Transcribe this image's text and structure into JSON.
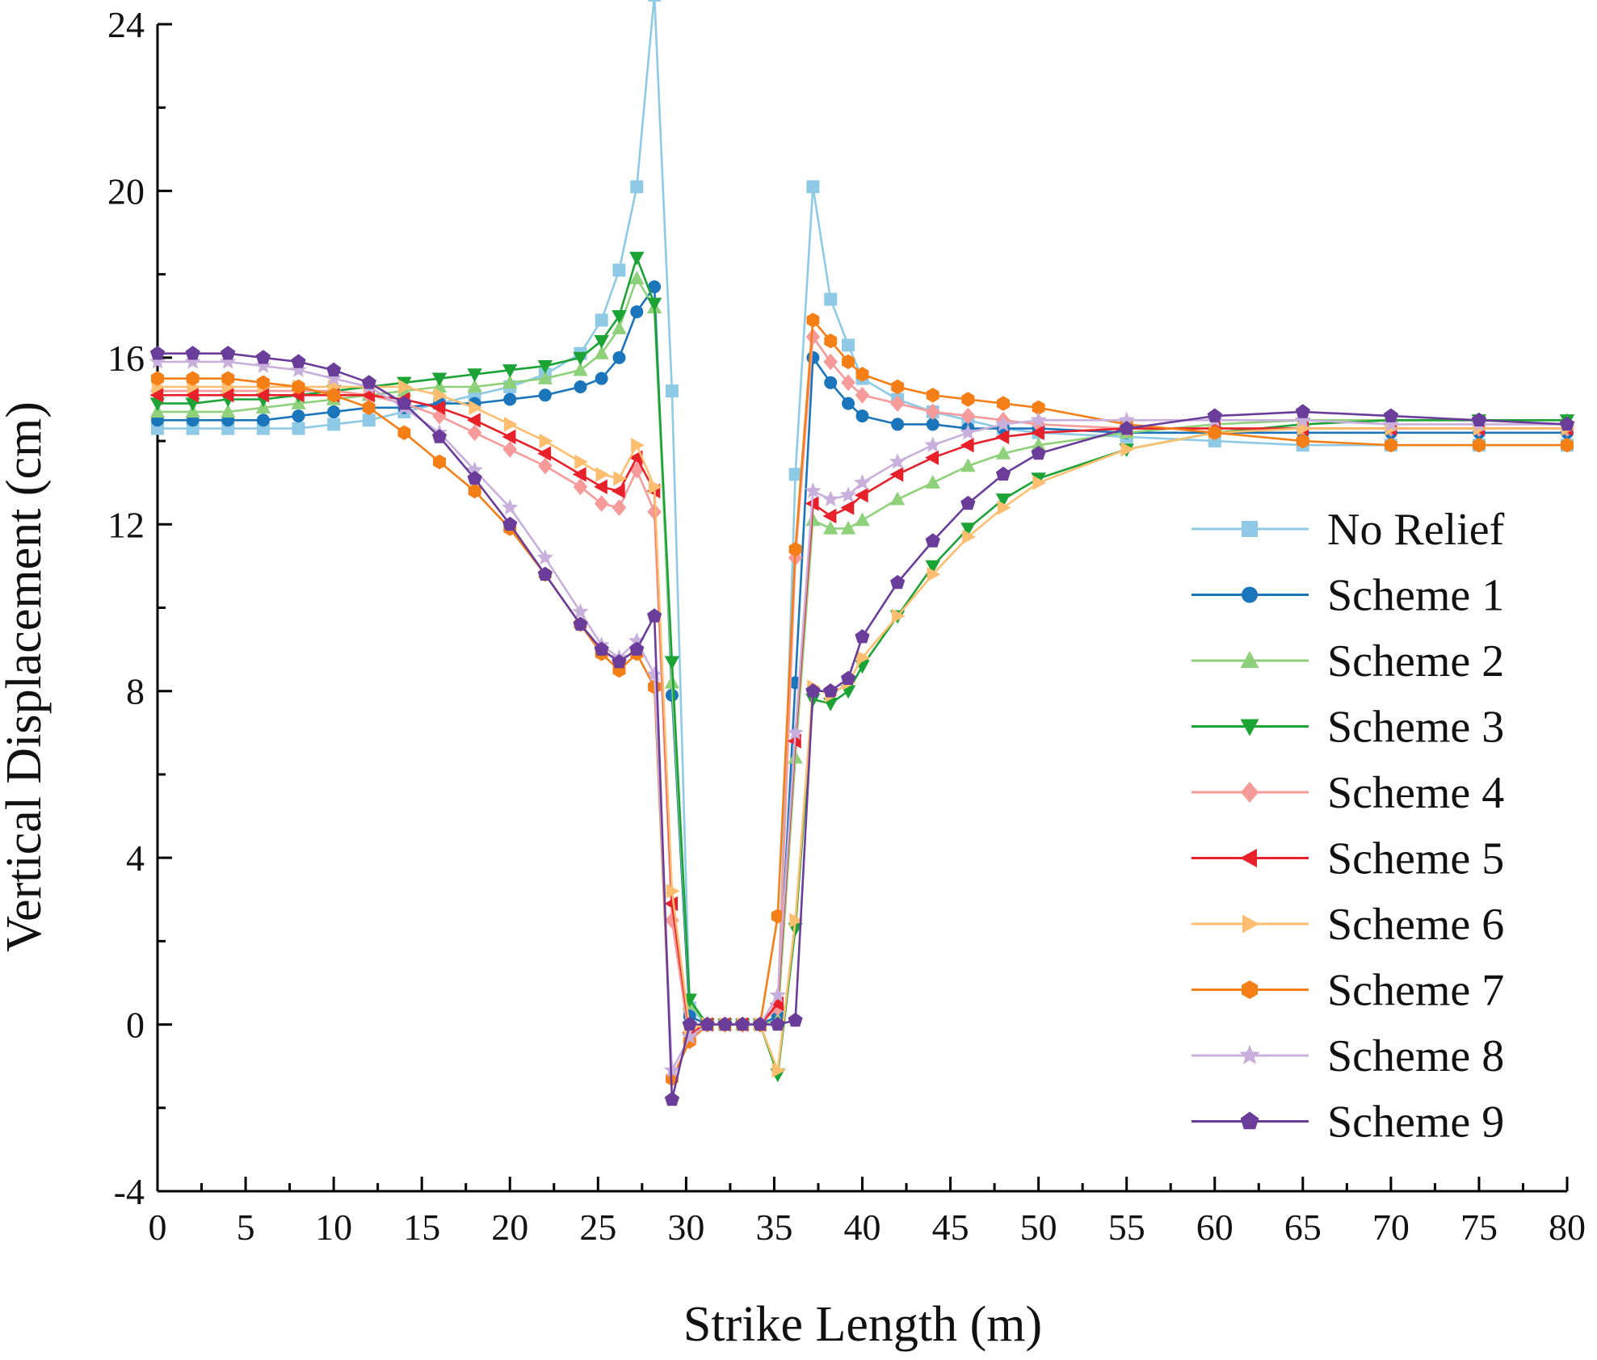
{
  "chart_data": {
    "type": "line",
    "title": "",
    "xlabel": "Strike Length (m)",
    "ylabel": "Vertical Displacement (cm)",
    "xlim": [
      0,
      80
    ],
    "ylim": [
      -4,
      24
    ],
    "xticks": [
      0,
      5,
      10,
      15,
      20,
      25,
      30,
      35,
      40,
      45,
      50,
      55,
      60,
      65,
      70,
      75,
      80
    ],
    "yticks": [
      -4,
      0,
      4,
      8,
      12,
      16,
      20,
      24
    ],
    "grid": false,
    "legend_position": "right",
    "series": [
      {
        "name": "No Relief",
        "color": "#8ecae6",
        "marker": "square",
        "x": [
          0,
          2,
          4,
          6,
          8,
          10,
          12,
          14,
          16,
          18,
          20,
          22,
          24,
          25.2,
          26.2,
          27.2,
          28.2,
          29.2,
          30.2,
          31.2,
          32.2,
          33.2,
          34.2,
          35.2,
          36.2,
          37.2,
          38.2,
          39.2,
          40,
          42,
          44,
          46,
          48,
          50,
          55,
          60,
          65,
          70,
          75,
          80
        ],
        "y": [
          14.3,
          14.3,
          14.3,
          14.3,
          14.3,
          14.4,
          14.5,
          14.7,
          14.9,
          15.1,
          15.3,
          15.6,
          16.1,
          16.9,
          18.1,
          20.1,
          24.7,
          15.2,
          0.4,
          0,
          0,
          0,
          0,
          0.2,
          13.2,
          20.1,
          17.4,
          16.3,
          15.5,
          15.0,
          14.7,
          14.5,
          14.3,
          14.2,
          14.1,
          14.0,
          13.9,
          13.9,
          13.9,
          13.9
        ]
      },
      {
        "name": "Scheme 1",
        "color": "#1b75bb",
        "marker": "circle",
        "x": [
          0,
          2,
          4,
          6,
          8,
          10,
          12,
          14,
          16,
          18,
          20,
          22,
          24,
          25.2,
          26.2,
          27.2,
          28.2,
          29.2,
          30.2,
          31.2,
          32.2,
          33.2,
          34.2,
          35.2,
          36.2,
          37.2,
          38.2,
          39.2,
          40,
          42,
          44,
          46,
          48,
          50,
          55,
          60,
          65,
          70,
          75,
          80
        ],
        "y": [
          14.5,
          14.5,
          14.5,
          14.5,
          14.6,
          14.7,
          14.8,
          14.8,
          14.9,
          14.9,
          15.0,
          15.1,
          15.3,
          15.5,
          16.0,
          17.1,
          17.7,
          7.9,
          0.2,
          0,
          0,
          0,
          0,
          0.2,
          8.2,
          16.0,
          15.4,
          14.9,
          14.6,
          14.4,
          14.4,
          14.3,
          14.3,
          14.3,
          14.2,
          14.2,
          14.2,
          14.2,
          14.2,
          14.2
        ]
      },
      {
        "name": "Scheme 2",
        "color": "#8fd17a",
        "marker": "triangle-up",
        "x": [
          0,
          2,
          4,
          6,
          8,
          10,
          12,
          14,
          16,
          18,
          20,
          22,
          24,
          25.2,
          26.2,
          27.2,
          28.2,
          29.2,
          30.2,
          31.2,
          32.2,
          33.2,
          34.2,
          35.2,
          36.2,
          37.2,
          38.2,
          39.2,
          40,
          42,
          44,
          46,
          48,
          50,
          55,
          60,
          65,
          70,
          75,
          80
        ],
        "y": [
          14.7,
          14.7,
          14.7,
          14.8,
          14.9,
          15.0,
          15.1,
          15.2,
          15.3,
          15.3,
          15.4,
          15.5,
          15.7,
          16.1,
          16.7,
          17.9,
          17.2,
          8.2,
          0.5,
          0,
          0,
          0,
          0,
          0.1,
          6.4,
          12.1,
          11.9,
          11.9,
          12.1,
          12.6,
          13.0,
          13.4,
          13.7,
          13.9,
          14.2,
          14.4,
          14.5,
          14.5,
          14.5,
          14.5
        ]
      },
      {
        "name": "Scheme 3",
        "color": "#1ca336",
        "marker": "triangle-down",
        "x": [
          0,
          2,
          4,
          6,
          8,
          10,
          12,
          14,
          16,
          18,
          20,
          22,
          24,
          25.2,
          26.2,
          27.2,
          28.2,
          29.2,
          30.2,
          31.2,
          32.2,
          33.2,
          34.2,
          35.2,
          36.2,
          37.2,
          38.2,
          39.2,
          40,
          42,
          44,
          46,
          48,
          50,
          55,
          60,
          65,
          70,
          75,
          80
        ],
        "y": [
          14.9,
          14.9,
          15.0,
          15.0,
          15.1,
          15.2,
          15.3,
          15.4,
          15.5,
          15.6,
          15.7,
          15.8,
          16.0,
          16.4,
          17.0,
          18.4,
          17.3,
          8.7,
          0.6,
          0,
          0,
          0,
          0,
          -1.2,
          2.3,
          7.8,
          7.7,
          8.0,
          8.6,
          9.8,
          11.0,
          11.9,
          12.6,
          13.1,
          13.8,
          14.2,
          14.4,
          14.5,
          14.5,
          14.5
        ]
      },
      {
        "name": "Scheme 4",
        "color": "#f69a9a",
        "marker": "diamond",
        "x": [
          0,
          2,
          4,
          6,
          8,
          10,
          12,
          14,
          16,
          18,
          20,
          22,
          24,
          25.2,
          26.2,
          27.2,
          28.2,
          29.2,
          30.2,
          31.2,
          32.2,
          33.2,
          34.2,
          35.2,
          36.2,
          37.2,
          38.2,
          39.2,
          40,
          42,
          44,
          46,
          48,
          50,
          55,
          60,
          65,
          70,
          75,
          80
        ],
        "y": [
          15.2,
          15.2,
          15.2,
          15.2,
          15.2,
          15.2,
          15.1,
          14.9,
          14.6,
          14.2,
          13.8,
          13.4,
          12.9,
          12.5,
          12.4,
          13.3,
          12.3,
          2.5,
          -0.4,
          0,
          0,
          0,
          0,
          0.4,
          11.2,
          16.5,
          15.9,
          15.4,
          15.1,
          14.9,
          14.7,
          14.6,
          14.5,
          14.4,
          14.3,
          14.3,
          14.3,
          14.3,
          14.3,
          14.3
        ]
      },
      {
        "name": "Scheme 5",
        "color": "#e8202a",
        "marker": "triangle-left",
        "x": [
          0,
          2,
          4,
          6,
          8,
          10,
          12,
          14,
          16,
          18,
          20,
          22,
          24,
          25.2,
          26.2,
          27.2,
          28.2,
          29.2,
          30.2,
          31.2,
          32.2,
          33.2,
          34.2,
          35.2,
          36.2,
          37.2,
          38.2,
          39.2,
          40,
          42,
          44,
          46,
          48,
          50,
          55,
          60,
          65,
          70,
          75,
          80
        ],
        "y": [
          15.1,
          15.1,
          15.1,
          15.1,
          15.1,
          15.1,
          15.1,
          15.0,
          14.8,
          14.5,
          14.1,
          13.7,
          13.2,
          12.9,
          12.8,
          13.6,
          12.8,
          2.9,
          -0.2,
          0,
          0,
          0,
          0,
          0.5,
          6.8,
          12.5,
          12.2,
          12.4,
          12.7,
          13.2,
          13.6,
          13.9,
          14.1,
          14.2,
          14.3,
          14.3,
          14.3,
          14.3,
          14.3,
          14.3
        ]
      },
      {
        "name": "Scheme 6",
        "color": "#fdbf6f",
        "marker": "triangle-right",
        "x": [
          0,
          2,
          4,
          6,
          8,
          10,
          12,
          14,
          16,
          18,
          20,
          22,
          24,
          25.2,
          26.2,
          27.2,
          28.2,
          29.2,
          30.2,
          31.2,
          32.2,
          33.2,
          34.2,
          35.2,
          36.2,
          37.2,
          38.2,
          39.2,
          40,
          42,
          44,
          46,
          48,
          50,
          55,
          60,
          65,
          70,
          75,
          80
        ],
        "y": [
          15.3,
          15.3,
          15.3,
          15.3,
          15.3,
          15.3,
          15.3,
          15.3,
          15.1,
          14.8,
          14.4,
          14.0,
          13.5,
          13.2,
          13.1,
          13.9,
          12.9,
          3.2,
          -0.1,
          0,
          0,
          0,
          0,
          -1.1,
          2.5,
          8.1,
          7.9,
          8.2,
          8.8,
          9.8,
          10.8,
          11.7,
          12.4,
          13.0,
          13.8,
          14.2,
          14.3,
          14.3,
          14.3,
          14.3
        ]
      },
      {
        "name": "Scheme 7",
        "color": "#f57f17",
        "marker": "hexagon",
        "x": [
          0,
          2,
          4,
          6,
          8,
          10,
          12,
          14,
          16,
          18,
          20,
          22,
          24,
          25.2,
          26.2,
          27.2,
          28.2,
          29.2,
          30.2,
          31.2,
          32.2,
          33.2,
          34.2,
          35.2,
          36.2,
          37.2,
          38.2,
          39.2,
          40,
          42,
          44,
          46,
          48,
          50,
          55,
          60,
          65,
          70,
          75,
          80
        ],
        "y": [
          15.5,
          15.5,
          15.5,
          15.4,
          15.3,
          15.1,
          14.8,
          14.2,
          13.5,
          12.8,
          11.9,
          10.8,
          9.6,
          8.9,
          8.5,
          8.9,
          8.1,
          -1.3,
          -0.4,
          0,
          0,
          0,
          0,
          2.6,
          11.4,
          16.9,
          16.4,
          15.9,
          15.6,
          15.3,
          15.1,
          15.0,
          14.9,
          14.8,
          14.4,
          14.2,
          14.0,
          13.9,
          13.9,
          13.9
        ]
      },
      {
        "name": "Scheme 8",
        "color": "#c9b0dc",
        "marker": "star",
        "x": [
          0,
          2,
          4,
          6,
          8,
          10,
          12,
          14,
          16,
          18,
          20,
          22,
          24,
          25.2,
          26.2,
          27.2,
          28.2,
          29.2,
          30.2,
          31.2,
          32.2,
          33.2,
          34.2,
          35.2,
          36.2,
          37.2,
          38.2,
          39.2,
          40,
          42,
          44,
          46,
          48,
          50,
          55,
          60,
          65,
          70,
          75,
          80
        ],
        "y": [
          15.9,
          15.9,
          15.9,
          15.8,
          15.7,
          15.5,
          15.3,
          14.8,
          14.2,
          13.3,
          12.4,
          11.2,
          9.9,
          9.1,
          8.8,
          9.2,
          8.4,
          -1.1,
          -0.3,
          0,
          0,
          0,
          0,
          0.7,
          7.0,
          12.8,
          12.6,
          12.7,
          13.0,
          13.5,
          13.9,
          14.2,
          14.4,
          14.5,
          14.5,
          14.5,
          14.5,
          14.4,
          14.4,
          14.4
        ]
      },
      {
        "name": "Scheme 9",
        "color": "#6a3d9a",
        "marker": "pentagon",
        "x": [
          0,
          2,
          4,
          6,
          8,
          10,
          12,
          14,
          16,
          18,
          20,
          22,
          24,
          25.2,
          26.2,
          27.2,
          28.2,
          29.2,
          30.2,
          31.2,
          32.2,
          33.2,
          34.2,
          35.2,
          36.2,
          37.2,
          38.2,
          39.2,
          40,
          42,
          44,
          46,
          48,
          50,
          55,
          60,
          65,
          70,
          75,
          80
        ],
        "y": [
          16.1,
          16.1,
          16.1,
          16.0,
          15.9,
          15.7,
          15.4,
          14.9,
          14.1,
          13.1,
          12.0,
          10.8,
          9.6,
          9.0,
          8.7,
          9.0,
          9.8,
          -1.8,
          0,
          0,
          0,
          0,
          0,
          0,
          0.1,
          8.0,
          8.0,
          8.3,
          9.3,
          10.6,
          11.6,
          12.5,
          13.2,
          13.7,
          14.3,
          14.6,
          14.7,
          14.6,
          14.5,
          14.4
        ]
      }
    ]
  }
}
